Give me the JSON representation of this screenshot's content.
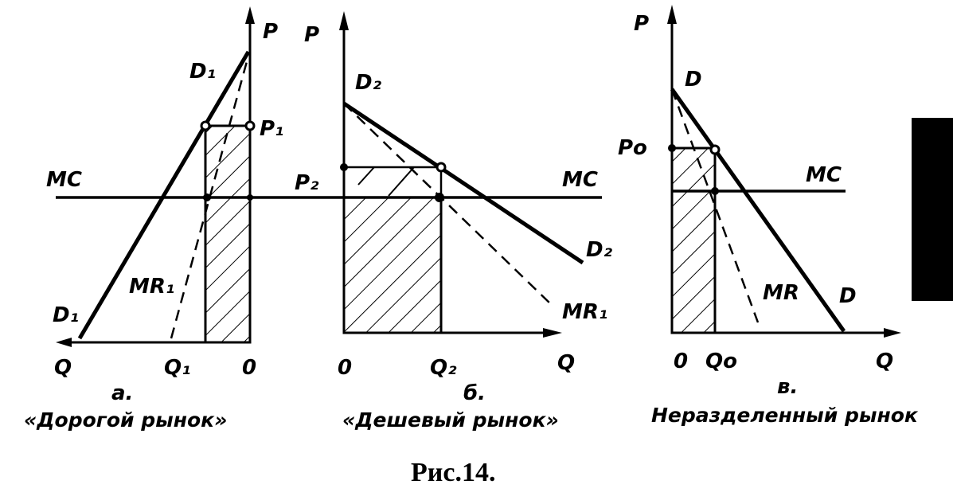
{
  "panel_a": {
    "price_axis": "P",
    "demand_top": "D₁",
    "demand_bottom": "D₁",
    "price_label": "P₁",
    "mc_label": "MC",
    "mr_label": "MR₁",
    "q_axis": "Q",
    "quantity_label": "Q₁",
    "origin": "0",
    "letter": "а.",
    "caption": "«Дорогой рынок»"
  },
  "panel_b": {
    "price_axis": "P",
    "demand_top": "D₂",
    "demand_end": "D₂",
    "price_label": "P₂",
    "mc_label": "MC",
    "mr_label": "MR₁",
    "origin": "0",
    "quantity_label": "Q₂",
    "q_axis": "Q",
    "letter": "б.",
    "caption": "«Дешевый рынок»"
  },
  "panel_c": {
    "price_axis": "P",
    "demand_top": "D",
    "price_label": "Pо",
    "mc_label": "MC",
    "mr_label": "MR",
    "demand_end": "D",
    "origin": "0",
    "quantity_label": "Qо",
    "q_axis": "Q",
    "letter": "в.",
    "caption": "Неразделенный рынок"
  },
  "figure_caption": "Рис.14."
}
